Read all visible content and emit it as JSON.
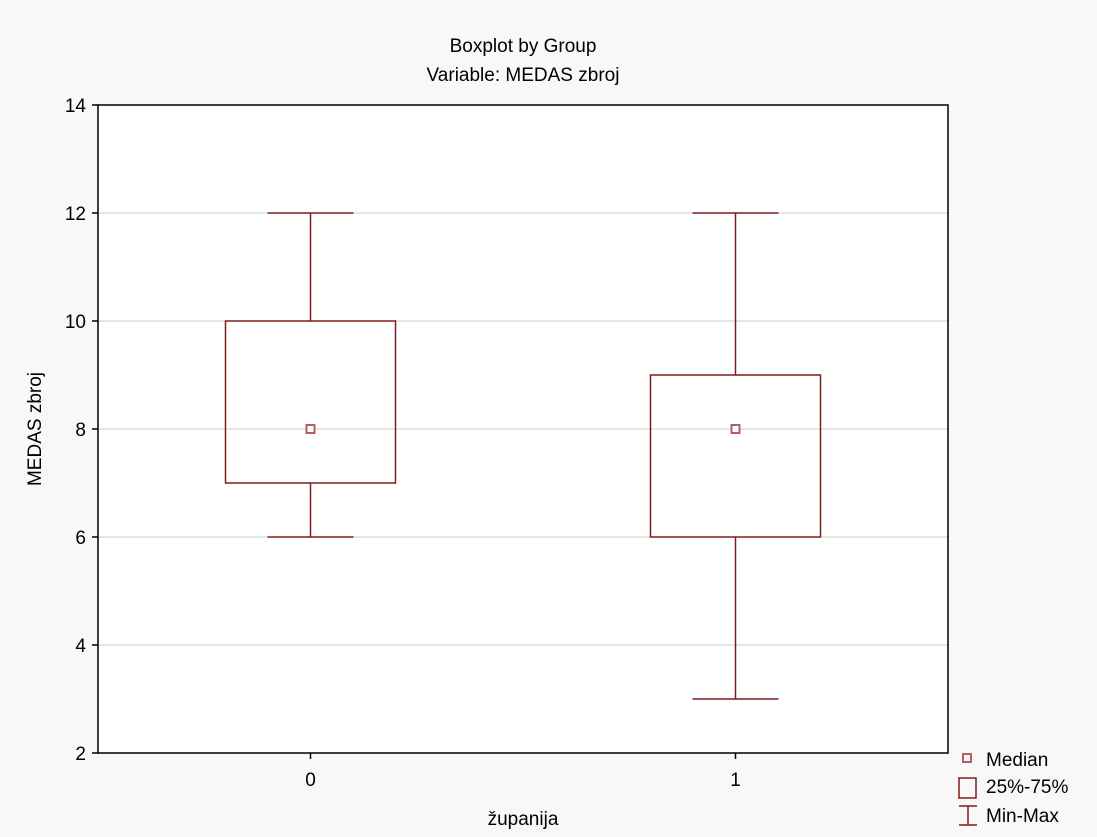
{
  "chart_data": {
    "type": "box",
    "title": "Boxplot by Group",
    "subtitle": "Variable: MEDAS zbroj",
    "xlabel": "županija",
    "ylabel": "MEDAS zbroj",
    "ylim": [
      2,
      14
    ],
    "yticks": [
      2,
      4,
      6,
      8,
      10,
      12,
      14
    ],
    "grid": true,
    "categories": [
      "0",
      "1"
    ],
    "boxes": [
      {
        "category": "0",
        "min": 6,
        "q1": 7,
        "median": 8,
        "q3": 10,
        "max": 12
      },
      {
        "category": "1",
        "min": 3,
        "q1": 6,
        "median": 8,
        "q3": 9,
        "max": 12
      }
    ],
    "legend": {
      "position": "bottom-right",
      "entries": [
        "Median",
        "25%-75%",
        "Min-Max"
      ]
    },
    "colors": {
      "box": "#7f1c1c",
      "median_marker": "#b06060",
      "background": "#f8f8f8",
      "plot_area": "#ffffff",
      "grid": "#cccccc",
      "frame": "#000000"
    }
  }
}
